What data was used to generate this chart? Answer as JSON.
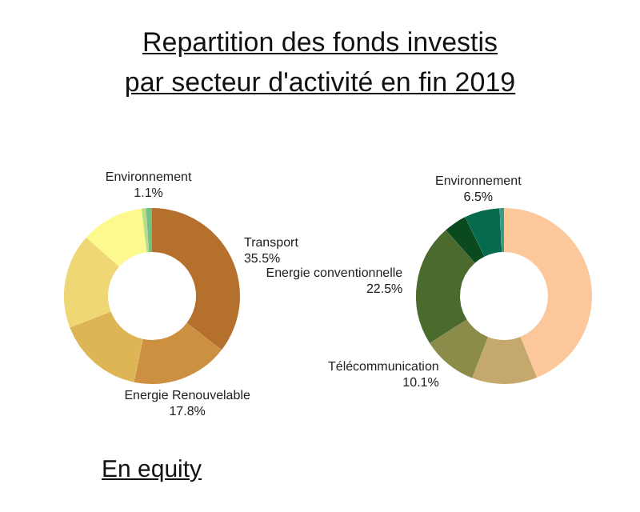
{
  "chart_data": [
    {
      "type": "donut",
      "title": "Repartition des fonds investis \npar secteur d'activité en fin 2019",
      "annotations": [
        "En equity"
      ],
      "categories": [
        "Transport",
        "Energie Renouvelable",
        null,
        null,
        null,
        null,
        "Environnement"
      ],
      "values": [
        35.5,
        17.8,
        15.9,
        17.4,
        11.5,
        0.8,
        1.1
      ],
      "value_labels": [
        "35.5%",
        "17.8%",
        null,
        null,
        null,
        null,
        "1.1%"
      ],
      "colors": [
        "#b5702e",
        "#cd9040",
        "#deb554",
        "#eed774",
        "#fdf98f",
        "#b5dd8a",
        "#74bf82"
      ]
    },
    {
      "type": "donut",
      "categories": [
        null,
        null,
        "Télécommunication",
        "Energie conventionnelle",
        null,
        "Environnement",
        null
      ],
      "values": [
        43.9,
        12,
        10.1,
        22.5,
        4.2,
        6.5,
        0.8
      ],
      "value_labels": [
        null,
        null,
        "10.1%",
        "22.5%",
        null,
        "6.5%",
        null
      ],
      "colors": [
        "#fcc79a",
        "#c4a86e",
        "#8c8c4a",
        "#4a6a2e",
        "#0b4a1e",
        "#066a4e",
        "#3a9a8a"
      ]
    }
  ]
}
